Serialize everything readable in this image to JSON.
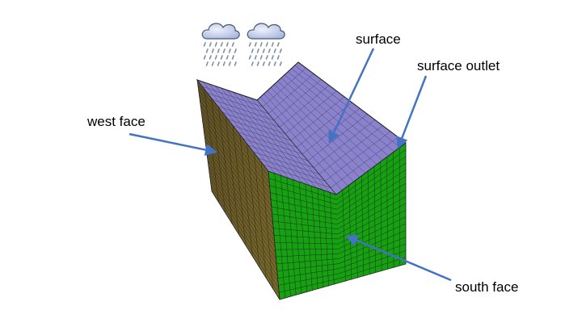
{
  "labels": {
    "surface": "surface",
    "surface_outlet": "surface outlet",
    "west_face": "west face",
    "south_face": "south face"
  },
  "colors": {
    "surface_face": "#8a82cc",
    "west_face": "#6e5e26",
    "south_face": "#16a012",
    "mesh_lines": "#1a1a1a",
    "arrows": "#4472c4",
    "cloud": "#c9d4ec",
    "rain": "#7f8aa0"
  },
  "icons": [
    "rain-cloud-icon",
    "rain-cloud-icon"
  ]
}
